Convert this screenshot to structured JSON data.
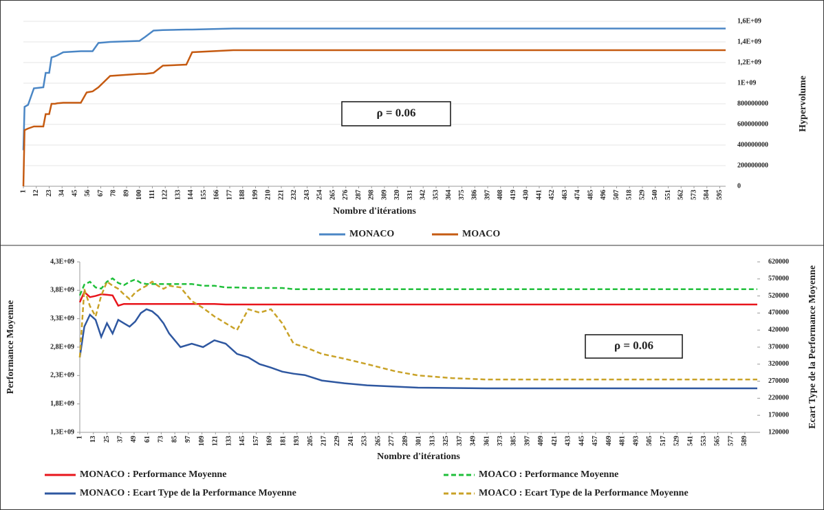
{
  "chart_data": [
    {
      "type": "line",
      "annotation": "ρ = 0.06",
      "xlabel": "Nombre d'itérations",
      "ylabel": "Hypervolume",
      "y_axis_side": "right",
      "grid": true,
      "x": [
        1,
        2,
        5,
        10,
        18,
        20,
        23,
        25,
        28,
        30,
        35,
        50,
        55,
        60,
        65,
        75,
        100,
        105,
        112,
        120,
        140,
        145,
        180,
        600
      ],
      "xlim": [
        1,
        600
      ],
      "xticks": [
        1,
        12,
        23,
        34,
        45,
        56,
        67,
        78,
        89,
        100,
        111,
        122,
        133,
        144,
        155,
        166,
        177,
        188,
        199,
        210,
        221,
        232,
        243,
        254,
        265,
        276,
        287,
        298,
        309,
        320,
        331,
        342,
        353,
        364,
        375,
        386,
        397,
        408,
        419,
        430,
        441,
        452,
        463,
        474,
        485,
        496,
        507,
        518,
        529,
        540,
        551,
        562,
        573,
        584,
        595
      ],
      "ylim": [
        0,
        1600000000
      ],
      "yticks": [
        0,
        200000000,
        400000000,
        600000000,
        800000000,
        {
          "value": 1000000000,
          "label": "1E+09"
        },
        {
          "value": 1200000000,
          "label": "1,2E+09"
        },
        {
          "value": 1400000000,
          "label": "1,4E+09"
        },
        {
          "value": 1600000000,
          "label": "1,6E+09"
        }
      ],
      "series": [
        {
          "name": "MONACO",
          "color": "#4a86c5",
          "values": [
            350000000,
            770000000,
            790000000,
            950000000,
            960000000,
            1100000000,
            1100000000,
            1250000000,
            1260000000,
            1270000000,
            1300000000,
            1310000000,
            1310000000,
            1310000000,
            1390000000,
            1400000000,
            1410000000,
            1450000000,
            1510000000,
            1515000000,
            1520000000,
            1520000000,
            1530000000,
            1530000000
          ]
        },
        {
          "name": "MOACO",
          "color": "#c55a11",
          "values": [
            0,
            545000000,
            560000000,
            580000000,
            580000000,
            700000000,
            700000000,
            800000000,
            800000000,
            805000000,
            810000000,
            810000000,
            910000000,
            920000000,
            960000000,
            1070000000,
            1090000000,
            1090000000,
            1100000000,
            1170000000,
            1180000000,
            1300000000,
            1320000000,
            1320000000
          ]
        }
      ]
    },
    {
      "type": "line",
      "annotation": "ρ = 0.06",
      "xlabel": "Nombre d'itérations",
      "ylabel": "Performance Moyenne",
      "y2label": "Ecart Type de la Performance Moyenne",
      "grid": false,
      "x": [
        1,
        5,
        10,
        15,
        20,
        25,
        30,
        35,
        40,
        45,
        50,
        55,
        60,
        65,
        70,
        75,
        80,
        90,
        100,
        110,
        120,
        130,
        140,
        150,
        160,
        170,
        180,
        190,
        200,
        215,
        235,
        255,
        280,
        300,
        330,
        360,
        420,
        600
      ],
      "xlim": [
        1,
        600
      ],
      "xticks": [
        1,
        13,
        25,
        37,
        49,
        61,
        73,
        85,
        97,
        109,
        121,
        133,
        145,
        157,
        169,
        181,
        193,
        205,
        217,
        229,
        241,
        253,
        265,
        277,
        289,
        301,
        313,
        325,
        337,
        349,
        361,
        373,
        385,
        397,
        409,
        421,
        433,
        445,
        457,
        469,
        481,
        493,
        505,
        517,
        529,
        541,
        553,
        565,
        577,
        589
      ],
      "ylim": [
        1300000000,
        4300000000
      ],
      "yticks": [
        {
          "value": 1300000000,
          "label": "1,3E+09"
        },
        {
          "value": 1800000000,
          "label": "1,8E+09"
        },
        {
          "value": 2300000000,
          "label": "2,3E+09"
        },
        {
          "value": 2800000000,
          "label": "2,8E+09"
        },
        {
          "value": 3300000000,
          "label": "3,3E+09"
        },
        {
          "value": 3800000000,
          "label": "3,8E+09"
        },
        {
          "value": 4300000000,
          "label": "4,3E+09"
        }
      ],
      "y2lim": [
        120000,
        620000
      ],
      "y2ticks": [
        120000,
        170000,
        220000,
        270000,
        320000,
        370000,
        420000,
        470000,
        520000,
        570000,
        620000
      ],
      "series": [
        {
          "name": "MONACO : Performance Moyenne",
          "color": "#e8141b",
          "style": "solid",
          "values": [
            3590000000,
            3770000000,
            3680000000,
            3700000000,
            3730000000,
            3720000000,
            3710000000,
            3530000000,
            3560000000,
            3560000000,
            3560000000,
            3560000000,
            3560000000,
            3560000000,
            3560000000,
            3560000000,
            3560000000,
            3560000000,
            3560000000,
            3560000000,
            3560000000,
            3550000000,
            3550000000,
            3550000000,
            3550000000,
            3550000000,
            3550000000,
            3550000000,
            3550000000,
            3550000000,
            3550000000,
            3550000000,
            3550000000,
            3550000000,
            3550000000,
            3550000000,
            3550000000,
            3550000000
          ]
        },
        {
          "name": "MOACO : Performance Moyenne",
          "color": "#1fbf3a",
          "style": "dashed",
          "values": [
            3710000000,
            3900000000,
            3950000000,
            3850000000,
            3830000000,
            3950000000,
            4010000000,
            3930000000,
            3890000000,
            3950000000,
            3990000000,
            3930000000,
            3910000000,
            3910000000,
            3910000000,
            3910000000,
            3910000000,
            3910000000,
            3910000000,
            3880000000,
            3880000000,
            3850000000,
            3850000000,
            3840000000,
            3840000000,
            3840000000,
            3840000000,
            3820000000,
            3820000000,
            3820000000,
            3820000000,
            3820000000,
            3820000000,
            3820000000,
            3820000000,
            3820000000,
            3820000000,
            3820000000
          ]
        },
        {
          "name": "MONACO : Ecart Type de la Performance Moyenne",
          "color": "#2e57a0",
          "style": "solid",
          "axis": "y2",
          "values": [
            340000,
            430000,
            465000,
            450000,
            400000,
            440000,
            410000,
            450000,
            440000,
            430000,
            445000,
            470000,
            481000,
            475000,
            461000,
            440000,
            410000,
            370000,
            380000,
            370000,
            390000,
            380000,
            350000,
            340000,
            320000,
            310000,
            298000,
            292000,
            288000,
            272000,
            264000,
            258000,
            254000,
            251000,
            250000,
            249000,
            249000,
            249000
          ]
        },
        {
          "name": "MOACO : Ecart Type de la Performance Moyenne",
          "color": "#c9a227",
          "style": "dashed",
          "axis": "y2",
          "values": [
            340000,
            540000,
            490000,
            460000,
            521000,
            562000,
            550000,
            541000,
            525000,
            511000,
            530000,
            541000,
            550000,
            562000,
            550000,
            541000,
            550000,
            545000,
            505000,
            485000,
            460000,
            440000,
            420000,
            481000,
            471000,
            481000,
            440000,
            380000,
            370000,
            350000,
            336000,
            320000,
            299000,
            287000,
            279000,
            275000,
            275000,
            275000
          ]
        }
      ]
    }
  ]
}
